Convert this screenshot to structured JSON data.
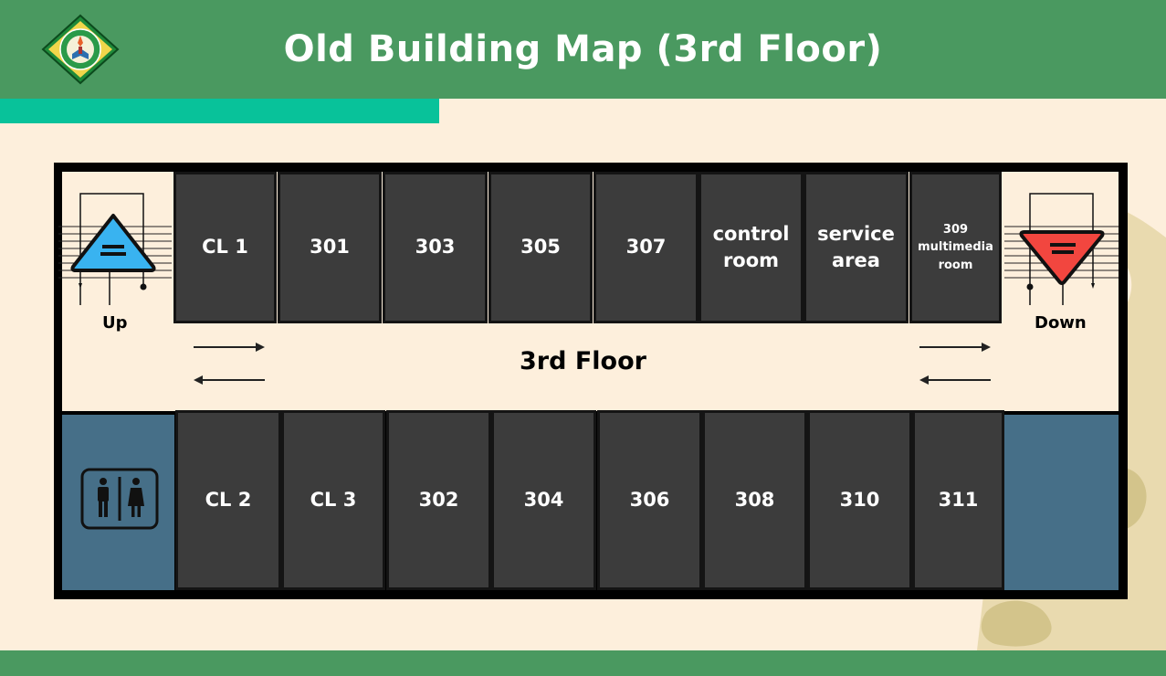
{
  "header": {
    "title": "Old Building Map (3rd Floor)"
  },
  "map": {
    "floor_label": "3rd Floor",
    "stairs_up": {
      "label": "Up",
      "icon": "stairs-up-icon",
      "color": "#39b3f0"
    },
    "stairs_down": {
      "label": "Down",
      "icon": "stairs-down-icon",
      "color": "#f2463f"
    },
    "restroom_icon": "restroom-icon",
    "top_rooms": [
      {
        "label": "CL 1"
      },
      {
        "label": "301"
      },
      {
        "label": "303"
      },
      {
        "label": "305"
      },
      {
        "label": "307"
      },
      {
        "label": "control room"
      },
      {
        "label": "service area"
      },
      {
        "label": "309 multimedia room"
      }
    ],
    "bottom_rooms": [
      {
        "label": "CL 2"
      },
      {
        "label": "CL 3"
      },
      {
        "label": "302"
      },
      {
        "label": "304"
      },
      {
        "label": "306"
      },
      {
        "label": "308"
      },
      {
        "label": "310"
      },
      {
        "label": "311"
      }
    ]
  },
  "colors": {
    "header": "#4a9960",
    "accent": "#08c29a",
    "background": "#fdefdc",
    "room": "#3c3c3c",
    "restroom_block": "#466f88"
  }
}
